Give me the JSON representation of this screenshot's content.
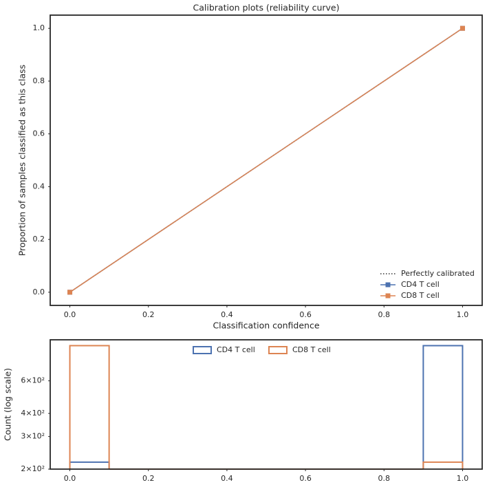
{
  "chart_data": [
    {
      "type": "line",
      "title": "Calibration plots (reliability curve)",
      "x_label": "Classification confidence",
      "y_label": "Proportion of samples classified as this class",
      "x": [
        0,
        1
      ],
      "series": [
        {
          "name": "Perfectly calibrated",
          "color": "#333333",
          "linestyle": "dotted",
          "marker": "none",
          "values": [
            0,
            1
          ]
        },
        {
          "name": "CD4 T cell",
          "color": "#4c72b0",
          "linestyle": "solid",
          "marker": "square",
          "values": [
            0,
            1
          ]
        },
        {
          "name": "CD8 T cell",
          "color": "#dd8452",
          "linestyle": "solid",
          "marker": "square",
          "values": [
            0,
            1
          ]
        }
      ],
      "xlim": [
        -0.05,
        1.05
      ],
      "ylim": [
        -0.05,
        1.05
      ],
      "xticks": [
        {
          "value": 0,
          "label": "0.0"
        },
        0.2,
        0.4,
        0.6,
        0.8,
        {
          "value": 1,
          "label": "1.0"
        }
      ],
      "yticks": [
        {
          "value": 0,
          "label": "0.0"
        },
        0.2,
        0.4,
        0.6,
        0.8,
        {
          "value": 1,
          "label": "1.0"
        }
      ],
      "grid": false,
      "legend": "lower right"
    },
    {
      "type": "histogram",
      "y_label": "Count (log scale)",
      "bins": [
        0,
        0.1,
        0.2,
        0.3,
        0.4,
        0.5,
        0.6,
        0.7,
        0.8,
        0.9,
        1.0
      ],
      "series": [
        {
          "name": "CD4 T cell",
          "color": "#4c72b0",
          "values": [
            218,
            0,
            0,
            0,
            0,
            0,
            0,
            0,
            0,
            930
          ]
        },
        {
          "name": "CD8 T cell",
          "color": "#dd8452",
          "values": [
            930,
            0,
            0,
            0,
            0,
            0,
            0,
            0,
            0,
            218
          ]
        }
      ],
      "xlim": [
        -0.05,
        1.05
      ],
      "ylim": [
        200,
        1000
      ],
      "log_y": true,
      "xticks": [
        {
          "value": 0,
          "label": "0.0"
        },
        0.2,
        0.4,
        0.6,
        0.8,
        {
          "value": 1,
          "label": "1.0"
        }
      ],
      "yticks": [
        {
          "value": 200,
          "label": "2×10²"
        },
        {
          "value": 300,
          "label": "3×10²"
        },
        {
          "value": 400,
          "label": "4×10²"
        },
        {
          "value": 600,
          "label": "6×10²"
        }
      ],
      "grid": false,
      "legend": "upper center"
    }
  ]
}
